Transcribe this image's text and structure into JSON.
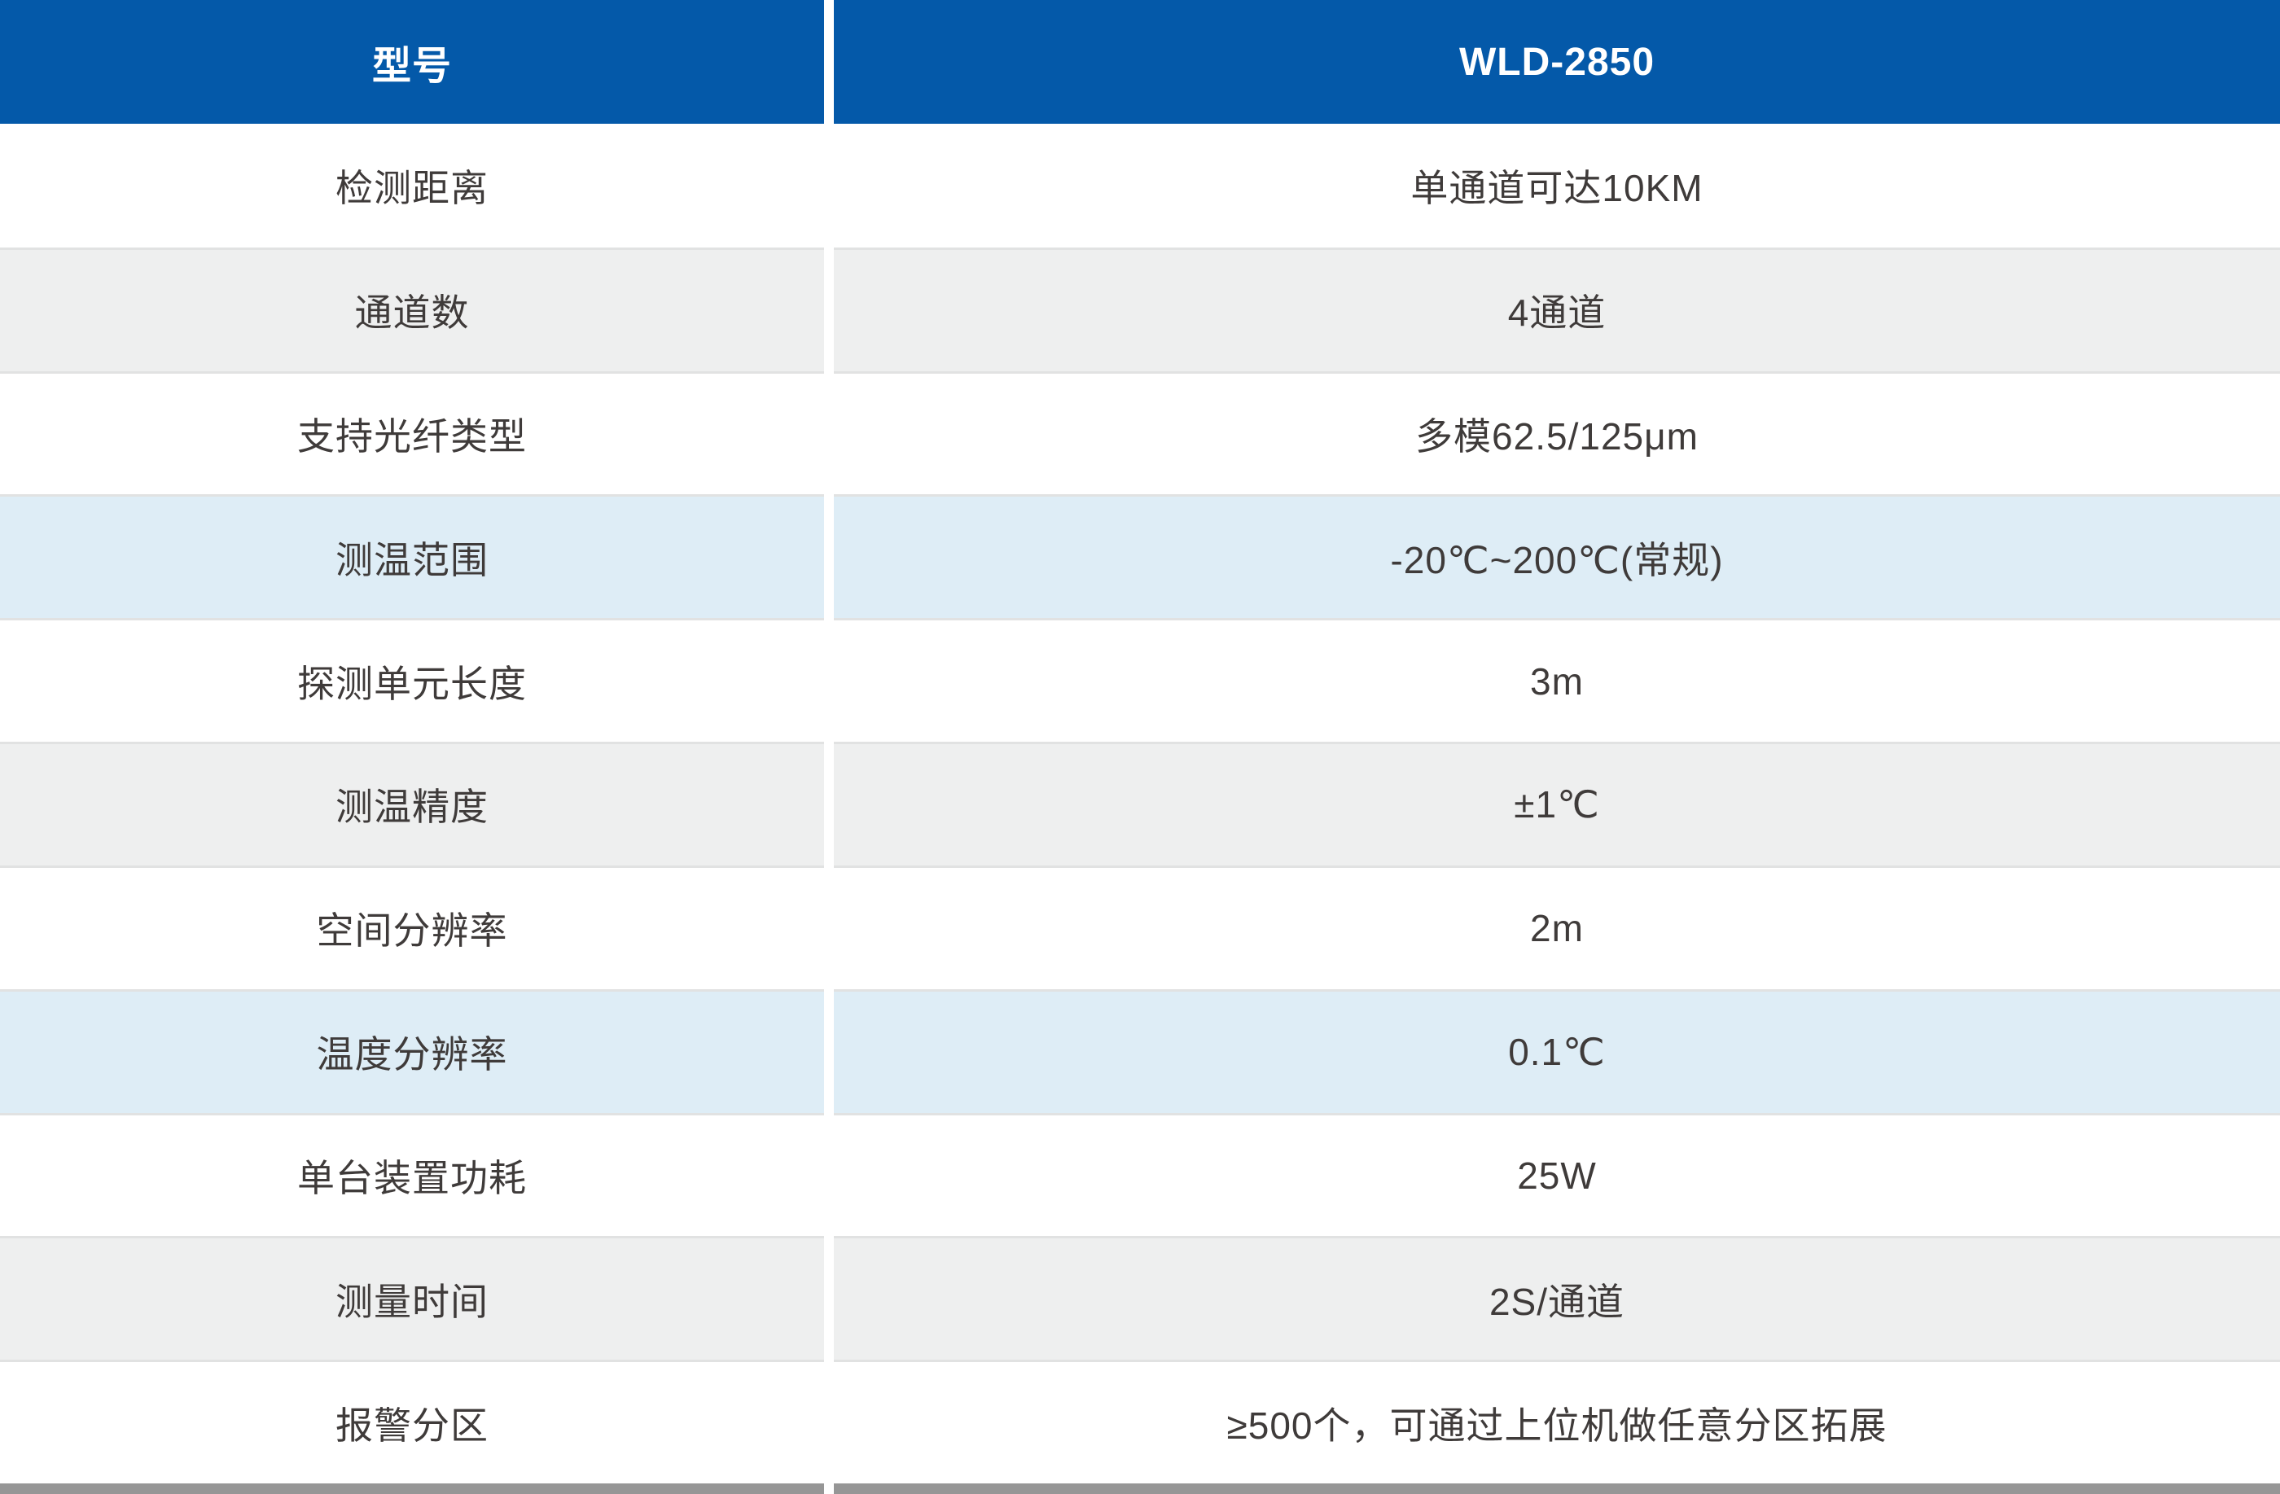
{
  "colors": {
    "header_bg": "#0459a9",
    "header_text": "#ffffff",
    "row_white": "#ffffff",
    "row_gray": "#eeefef",
    "row_blue": "#deedf6",
    "separator": "#e1e2e2",
    "bottom_bar": "#969696",
    "body_text": "#3f3b3a",
    "column_divider": "#ffffff"
  },
  "table": {
    "header": {
      "label": "型号",
      "value": "WLD-2850"
    },
    "rows": [
      {
        "label": "检测距离",
        "value": "单通道可达10KM",
        "bg": "white"
      },
      {
        "label": "通道数",
        "value": "4通道",
        "bg": "gray"
      },
      {
        "label": "支持光纤类型",
        "value": "多模62.5/125μm",
        "bg": "white"
      },
      {
        "label": "测温范围",
        "value": "-20℃~200℃(常规)",
        "bg": "blue"
      },
      {
        "label": "探测单元长度",
        "value": "3m",
        "bg": "white"
      },
      {
        "label": "测温精度",
        "value": "±1℃",
        "bg": "gray"
      },
      {
        "label": "空间分辨率",
        "value": "2m",
        "bg": "white"
      },
      {
        "label": "温度分辨率",
        "value": "0.1℃",
        "bg": "blue"
      },
      {
        "label": "单台装置功耗",
        "value": "25W",
        "bg": "white"
      },
      {
        "label": "测量时间",
        "value": "2S/通道",
        "bg": "gray"
      },
      {
        "label": "报警分区",
        "value": "≥500个，可通过上位机做任意分区拓展",
        "bg": "white"
      }
    ]
  }
}
